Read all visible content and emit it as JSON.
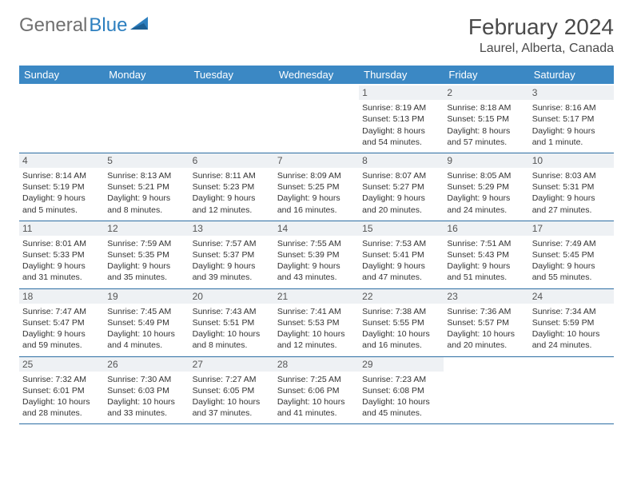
{
  "logo": {
    "text_gray": "General",
    "text_blue": "Blue"
  },
  "title": {
    "month": "February 2024",
    "location": "Laurel, Alberta, Canada"
  },
  "colors": {
    "header_bg": "#3b88c4",
    "header_text": "#ffffff",
    "daynum_bg": "#eef1f4",
    "week_border": "#2d6ea3",
    "logo_gray": "#707070",
    "logo_blue": "#2d7fbf",
    "body_text": "#333333"
  },
  "day_names": [
    "Sunday",
    "Monday",
    "Tuesday",
    "Wednesday",
    "Thursday",
    "Friday",
    "Saturday"
  ],
  "weeks": [
    [
      {
        "day": "",
        "lines": []
      },
      {
        "day": "",
        "lines": []
      },
      {
        "day": "",
        "lines": []
      },
      {
        "day": "",
        "lines": []
      },
      {
        "day": "1",
        "lines": [
          "Sunrise: 8:19 AM",
          "Sunset: 5:13 PM",
          "Daylight: 8 hours and 54 minutes."
        ]
      },
      {
        "day": "2",
        "lines": [
          "Sunrise: 8:18 AM",
          "Sunset: 5:15 PM",
          "Daylight: 8 hours and 57 minutes."
        ]
      },
      {
        "day": "3",
        "lines": [
          "Sunrise: 8:16 AM",
          "Sunset: 5:17 PM",
          "Daylight: 9 hours and 1 minute."
        ]
      }
    ],
    [
      {
        "day": "4",
        "lines": [
          "Sunrise: 8:14 AM",
          "Sunset: 5:19 PM",
          "Daylight: 9 hours and 5 minutes."
        ]
      },
      {
        "day": "5",
        "lines": [
          "Sunrise: 8:13 AM",
          "Sunset: 5:21 PM",
          "Daylight: 9 hours and 8 minutes."
        ]
      },
      {
        "day": "6",
        "lines": [
          "Sunrise: 8:11 AM",
          "Sunset: 5:23 PM",
          "Daylight: 9 hours and 12 minutes."
        ]
      },
      {
        "day": "7",
        "lines": [
          "Sunrise: 8:09 AM",
          "Sunset: 5:25 PM",
          "Daylight: 9 hours and 16 minutes."
        ]
      },
      {
        "day": "8",
        "lines": [
          "Sunrise: 8:07 AM",
          "Sunset: 5:27 PM",
          "Daylight: 9 hours and 20 minutes."
        ]
      },
      {
        "day": "9",
        "lines": [
          "Sunrise: 8:05 AM",
          "Sunset: 5:29 PM",
          "Daylight: 9 hours and 24 minutes."
        ]
      },
      {
        "day": "10",
        "lines": [
          "Sunrise: 8:03 AM",
          "Sunset: 5:31 PM",
          "Daylight: 9 hours and 27 minutes."
        ]
      }
    ],
    [
      {
        "day": "11",
        "lines": [
          "Sunrise: 8:01 AM",
          "Sunset: 5:33 PM",
          "Daylight: 9 hours and 31 minutes."
        ]
      },
      {
        "day": "12",
        "lines": [
          "Sunrise: 7:59 AM",
          "Sunset: 5:35 PM",
          "Daylight: 9 hours and 35 minutes."
        ]
      },
      {
        "day": "13",
        "lines": [
          "Sunrise: 7:57 AM",
          "Sunset: 5:37 PM",
          "Daylight: 9 hours and 39 minutes."
        ]
      },
      {
        "day": "14",
        "lines": [
          "Sunrise: 7:55 AM",
          "Sunset: 5:39 PM",
          "Daylight: 9 hours and 43 minutes."
        ]
      },
      {
        "day": "15",
        "lines": [
          "Sunrise: 7:53 AM",
          "Sunset: 5:41 PM",
          "Daylight: 9 hours and 47 minutes."
        ]
      },
      {
        "day": "16",
        "lines": [
          "Sunrise: 7:51 AM",
          "Sunset: 5:43 PM",
          "Daylight: 9 hours and 51 minutes."
        ]
      },
      {
        "day": "17",
        "lines": [
          "Sunrise: 7:49 AM",
          "Sunset: 5:45 PM",
          "Daylight: 9 hours and 55 minutes."
        ]
      }
    ],
    [
      {
        "day": "18",
        "lines": [
          "Sunrise: 7:47 AM",
          "Sunset: 5:47 PM",
          "Daylight: 9 hours and 59 minutes."
        ]
      },
      {
        "day": "19",
        "lines": [
          "Sunrise: 7:45 AM",
          "Sunset: 5:49 PM",
          "Daylight: 10 hours and 4 minutes."
        ]
      },
      {
        "day": "20",
        "lines": [
          "Sunrise: 7:43 AM",
          "Sunset: 5:51 PM",
          "Daylight: 10 hours and 8 minutes."
        ]
      },
      {
        "day": "21",
        "lines": [
          "Sunrise: 7:41 AM",
          "Sunset: 5:53 PM",
          "Daylight: 10 hours and 12 minutes."
        ]
      },
      {
        "day": "22",
        "lines": [
          "Sunrise: 7:38 AM",
          "Sunset: 5:55 PM",
          "Daylight: 10 hours and 16 minutes."
        ]
      },
      {
        "day": "23",
        "lines": [
          "Sunrise: 7:36 AM",
          "Sunset: 5:57 PM",
          "Daylight: 10 hours and 20 minutes."
        ]
      },
      {
        "day": "24",
        "lines": [
          "Sunrise: 7:34 AM",
          "Sunset: 5:59 PM",
          "Daylight: 10 hours and 24 minutes."
        ]
      }
    ],
    [
      {
        "day": "25",
        "lines": [
          "Sunrise: 7:32 AM",
          "Sunset: 6:01 PM",
          "Daylight: 10 hours and 28 minutes."
        ]
      },
      {
        "day": "26",
        "lines": [
          "Sunrise: 7:30 AM",
          "Sunset: 6:03 PM",
          "Daylight: 10 hours and 33 minutes."
        ]
      },
      {
        "day": "27",
        "lines": [
          "Sunrise: 7:27 AM",
          "Sunset: 6:05 PM",
          "Daylight: 10 hours and 37 minutes."
        ]
      },
      {
        "day": "28",
        "lines": [
          "Sunrise: 7:25 AM",
          "Sunset: 6:06 PM",
          "Daylight: 10 hours and 41 minutes."
        ]
      },
      {
        "day": "29",
        "lines": [
          "Sunrise: 7:23 AM",
          "Sunset: 6:08 PM",
          "Daylight: 10 hours and 45 minutes."
        ]
      },
      {
        "day": "",
        "lines": []
      },
      {
        "day": "",
        "lines": []
      }
    ]
  ]
}
